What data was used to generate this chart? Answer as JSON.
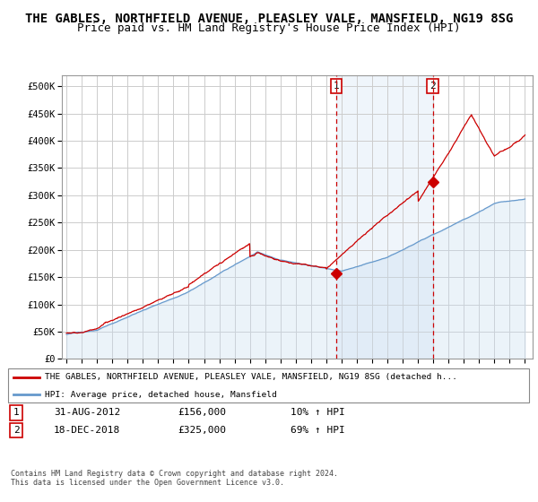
{
  "title": "THE GABLES, NORTHFIELD AVENUE, PLEASLEY VALE, MANSFIELD, NG19 8SG",
  "subtitle": "Price paid vs. HM Land Registry's House Price Index (HPI)",
  "ylabel_ticks": [
    "£0",
    "£50K",
    "£100K",
    "£150K",
    "£200K",
    "£250K",
    "£300K",
    "£350K",
    "£400K",
    "£450K",
    "£500K"
  ],
  "ytick_vals": [
    0,
    50000,
    100000,
    150000,
    200000,
    250000,
    300000,
    350000,
    400000,
    450000,
    500000
  ],
  "ylim": [
    0,
    520000
  ],
  "xlim_start": 1994.7,
  "xlim_end": 2025.5,
  "transaction1": {
    "date_x": 2012.667,
    "price": 156000,
    "label": "1",
    "text": "31-AUG-2012",
    "amount": "£156,000",
    "hpi_pct": "10% ↑ HPI"
  },
  "transaction2": {
    "date_x": 2018.96,
    "price": 325000,
    "label": "2",
    "text": "18-DEC-2018",
    "amount": "£325,000",
    "hpi_pct": "69% ↑ HPI"
  },
  "legend_property": "THE GABLES, NORTHFIELD AVENUE, PLEASLEY VALE, MANSFIELD, NG19 8SG (detached h...",
  "legend_hpi": "HPI: Average price, detached house, Mansfield",
  "footer": "Contains HM Land Registry data © Crown copyright and database right 2024.\nThis data is licensed under the Open Government Licence v3.0.",
  "property_line_color": "#cc0000",
  "hpi_line_color": "#6699cc",
  "hpi_fill_color": "#ddeeff",
  "grid_color": "#cccccc",
  "title_fontsize": 10,
  "subtitle_fontsize": 9
}
